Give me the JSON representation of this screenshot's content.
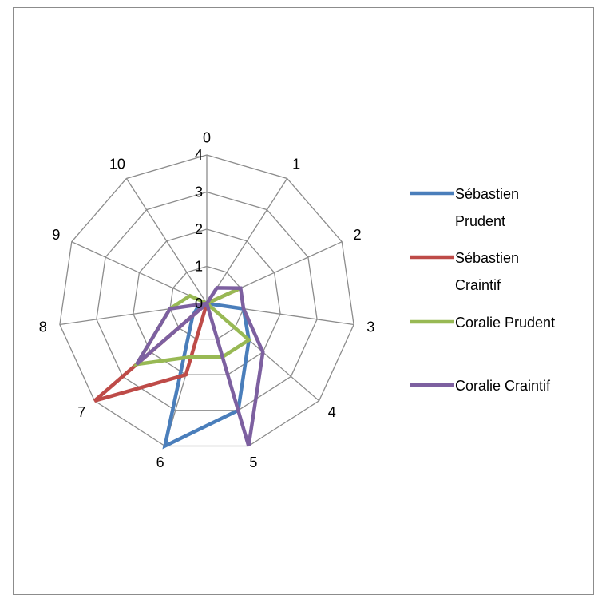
{
  "chart_data": {
    "type": "radar",
    "categories": [
      "0",
      "1",
      "2",
      "3",
      "4",
      "5",
      "6",
      "7",
      "8",
      "9",
      "10"
    ],
    "rlim": [
      0,
      4
    ],
    "r_ticks": [
      "0",
      "1",
      "2",
      "3",
      "4"
    ],
    "grid": true,
    "legend_position": "right",
    "series": [
      {
        "name": "Sébastien Prudent",
        "color": "#4a7ebb",
        "values": [
          0,
          0,
          0,
          1,
          1.5,
          3,
          4,
          0.5,
          0.2,
          0,
          0
        ]
      },
      {
        "name": "Sébastien Craintif",
        "color": "#be4b48",
        "values": [
          0,
          0,
          1,
          0,
          0,
          0,
          2,
          4,
          0,
          0,
          0
        ]
      },
      {
        "name": "Coralie Prudent",
        "color": "#98b954",
        "values": [
          0,
          0,
          1,
          0,
          1.5,
          1.5,
          1.5,
          2.5,
          1,
          0.5,
          0
        ]
      },
      {
        "name": "Coralie Craintif",
        "color": "#7d60a0",
        "values": [
          0,
          0.5,
          1,
          1,
          2,
          4,
          0,
          2.5,
          1,
          0,
          0
        ]
      }
    ]
  }
}
